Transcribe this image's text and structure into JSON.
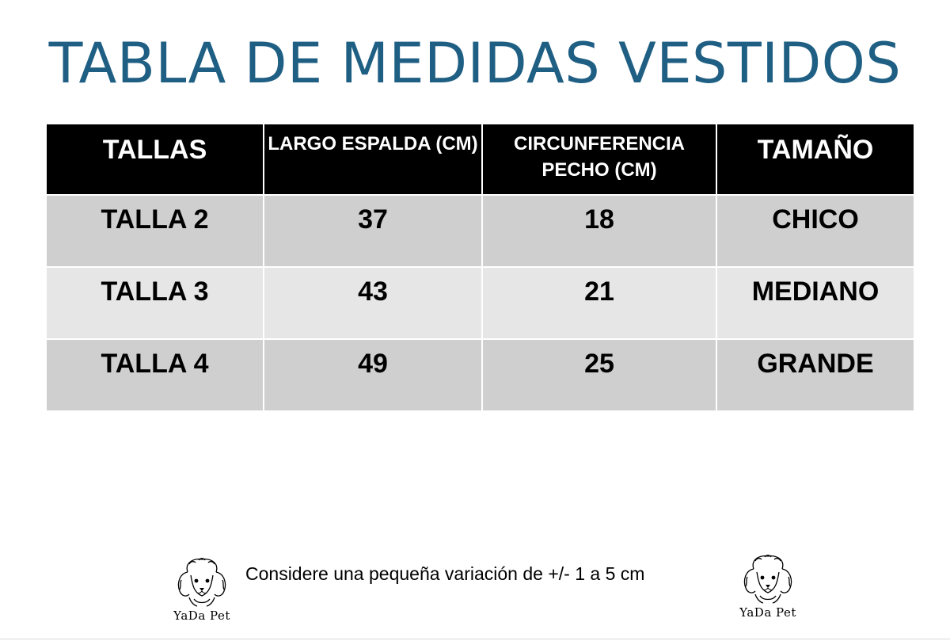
{
  "title": "TABLA DE MEDIDAS VESTIDOS",
  "table": {
    "headers": [
      "TALLAS",
      "LARGO ESPALDA (CM)",
      "CIRCUNFERENCIA PECHO (CM)",
      "TAMAÑO"
    ],
    "rows": [
      [
        "TALLA 2",
        "37",
        "18",
        "CHICO"
      ],
      [
        "TALLA 3",
        "43",
        "21",
        "MEDIANO"
      ],
      [
        "TALLA 4",
        "49",
        "25",
        "GRANDE"
      ]
    ]
  },
  "note": "Considere una pequeña variación de +/- 1 a 5 cm",
  "logos": {
    "left_brand": "YaDa Pet",
    "right_brand": "YaDa Pet",
    "icon": "poodle-dog-icon"
  },
  "colors": {
    "title": "#1f5f83",
    "header_bg": "#000000",
    "row_dark": "#cfcfcf",
    "row_light": "#e6e6e6"
  }
}
